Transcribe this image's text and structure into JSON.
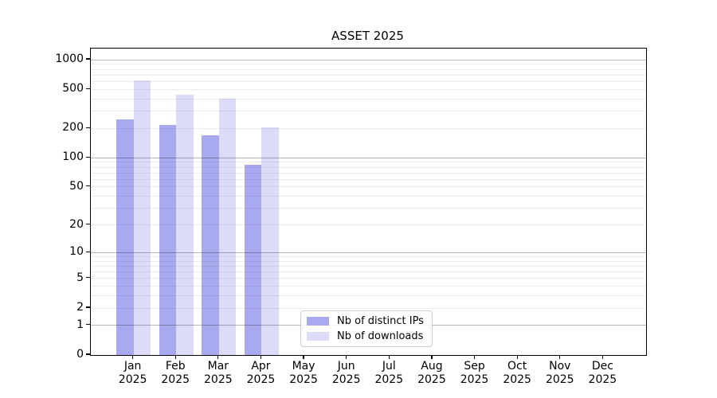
{
  "chart_data": {
    "type": "bar",
    "title": "ASSET 2025",
    "categories": [
      "Jan",
      "Feb",
      "Mar",
      "Apr",
      "May",
      "Jun",
      "Jul",
      "Aug",
      "Sep",
      "Oct",
      "Nov",
      "Dec"
    ],
    "category_year_line": "2025",
    "series": [
      {
        "name": "Nb of distinct IPs",
        "color": "#a9a9f0",
        "values": [
          245,
          215,
          170,
          85,
          null,
          null,
          null,
          null,
          null,
          null,
          null,
          null
        ]
      },
      {
        "name": "Nb of downloads",
        "color": "#dcdcf8",
        "values": [
          620,
          440,
          400,
          205,
          null,
          null,
          null,
          null,
          null,
          null,
          null,
          null
        ]
      }
    ],
    "yscale": "log1p",
    "ylim": [
      0,
      1300
    ],
    "y_tick_values": [
      1000,
      500,
      200,
      100,
      50,
      20,
      10,
      5,
      2,
      1,
      0
    ],
    "y_tick_labels": [
      "1000",
      "500",
      "200",
      "100",
      "50",
      "20",
      "10",
      "5",
      "2",
      "1",
      "0"
    ],
    "y_major_gridlines": [
      1,
      10,
      100,
      1000
    ],
    "y_minor_gridlines": [
      2,
      3,
      4,
      5,
      6,
      7,
      8,
      9,
      20,
      30,
      40,
      50,
      60,
      70,
      80,
      90,
      200,
      300,
      400,
      500,
      600,
      700,
      800,
      900
    ],
    "grid": true,
    "legend": {
      "position": "lower-center",
      "entries": [
        "Nb of distinct IPs",
        "Nb of downloads"
      ]
    }
  }
}
